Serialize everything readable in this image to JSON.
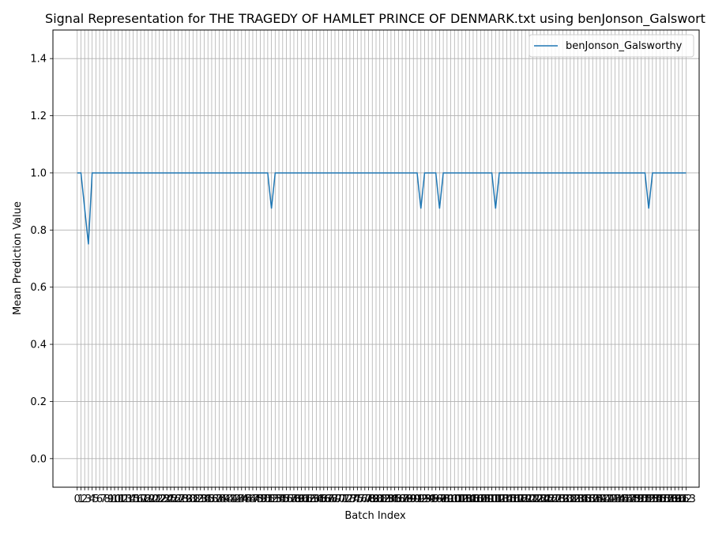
{
  "chart_data": {
    "type": "line",
    "title": "Signal Representation for THE TRAGEDY OF HAMLET PRINCE OF DENMARK.txt using benJonson_Galswort",
    "xlabel": "Batch Index",
    "ylabel": "Mean Prediction Value",
    "xlim": [
      -6.5,
      166.5
    ],
    "ylim": [
      -0.1,
      1.5
    ],
    "yticks": [
      0.0,
      0.2,
      0.4,
      0.6,
      0.8,
      1.0,
      1.2,
      1.4
    ],
    "ytick_labels": [
      "0.0",
      "0.2",
      "0.4",
      "0.6",
      "0.8",
      "1.0",
      "1.2",
      "1.4"
    ],
    "xticks_count": 164,
    "grid": true,
    "legend_position": "upper right",
    "series": [
      {
        "name": "benJonson_Galsworthy",
        "color": "#1f77b4",
        "length": 164,
        "baseline": 1.0,
        "dips": [
          {
            "index": 2,
            "value": 0.875
          },
          {
            "index": 3,
            "value": 0.75
          },
          {
            "index": 52,
            "value": 0.875
          },
          {
            "index": 92,
            "value": 0.875
          },
          {
            "index": 97,
            "value": 0.875
          },
          {
            "index": 112,
            "value": 0.875
          },
          {
            "index": 153,
            "value": 0.875
          }
        ]
      }
    ]
  }
}
